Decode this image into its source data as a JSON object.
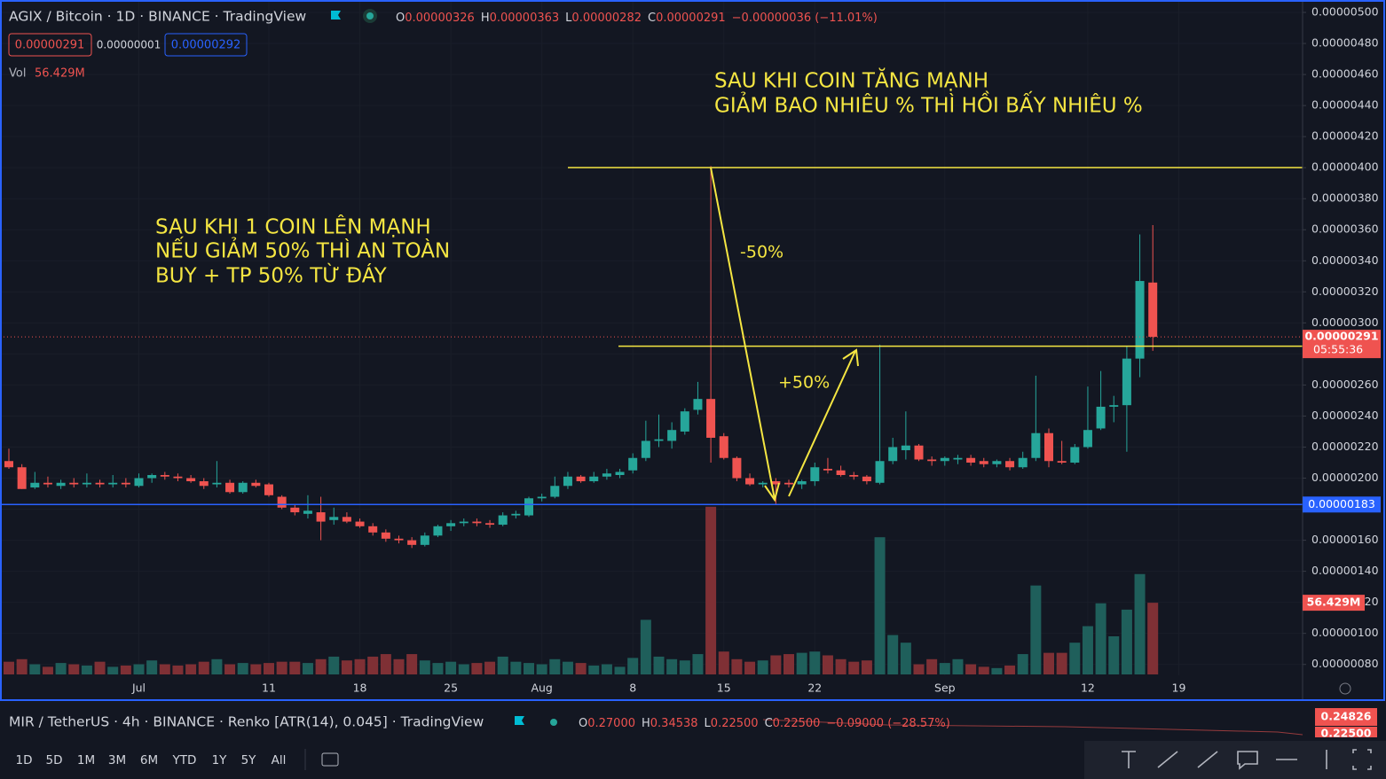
{
  "header": {
    "title": "AGIX / Bitcoin · 1D · BINANCE · TradingView",
    "ohlc": [
      {
        "key": "O",
        "value": "0.00000326"
      },
      {
        "key": "H",
        "value": "0.00000363"
      },
      {
        "key": "L",
        "value": "0.00000282"
      },
      {
        "key": "C",
        "value": "0.00000291"
      }
    ],
    "change": "−0.00000036 (−11.01%)",
    "sell": "0.00000291",
    "spread": "0.00000001",
    "buy": "0.00000292",
    "vol_label": "Vol"
  },
  "chart_data": {
    "type": "candlestick",
    "up_color": "#26a69a",
    "down_color": "#ef5350",
    "open": [
      2.11e-06,
      2.07e-06,
      1.94e-06,
      1.97e-06,
      1.95e-06,
      1.97e-06,
      1.96e-06,
      1.97e-06,
      1.96e-06,
      1.97e-06,
      1.95e-06,
      2e-06,
      2.02e-06,
      2.01e-06,
      2e-06,
      1.98e-06,
      1.96e-06,
      1.97e-06,
      1.91e-06,
      1.97e-06,
      1.96e-06,
      1.88e-06,
      1.81e-06,
      1.77e-06,
      1.78e-06,
      1.73e-06,
      1.75e-06,
      1.72e-06,
      1.69e-06,
      1.65e-06,
      1.61e-06,
      1.6e-06,
      1.57e-06,
      1.63e-06,
      1.69e-06,
      1.71e-06,
      1.72e-06,
      1.71e-06,
      1.7e-06,
      1.76e-06,
      1.76e-06,
      1.87e-06,
      1.88e-06,
      1.95e-06,
      2.01e-06,
      1.98e-06,
      2.01e-06,
      2.02e-06,
      2.05e-06,
      2.13e-06,
      2.24e-06,
      2.24e-06,
      2.3e-06,
      2.44e-06,
      2.51e-06,
      2.27e-06,
      2.13e-06,
      2e-06,
      1.96e-06,
      1.98e-06,
      1.97e-06,
      1.96e-06,
      1.98e-06,
      2.06e-06,
      2.05e-06,
      2.02e-06,
      2.01e-06,
      1.97e-06,
      2.11e-06,
      2.18e-06,
      2.21e-06,
      2.12e-06,
      2.11e-06,
      2.12e-06,
      2.13e-06,
      2.11e-06,
      2.09e-06,
      2.11e-06,
      2.07e-06,
      2.13e-06,
      2.29e-06,
      2.11e-06,
      2.1e-06,
      2.2e-06,
      2.32e-06,
      2.46e-06,
      2.47e-06,
      2.77e-06,
      3.26e-06
    ],
    "high": [
      2.19e-06,
      2.09e-06,
      2.04e-06,
      2.01e-06,
      1.99e-06,
      2e-06,
      2.03e-06,
      1.99e-06,
      2.02e-06,
      2e-06,
      2.03e-06,
      2.03e-06,
      2.04e-06,
      2.03e-06,
      2.02e-06,
      2e-06,
      2.11e-06,
      1.99e-06,
      1.98e-06,
      1.99e-06,
      1.97e-06,
      1.89e-06,
      1.83e-06,
      1.89e-06,
      1.88e-06,
      1.81e-06,
      1.78e-06,
      1.74e-06,
      1.71e-06,
      1.67e-06,
      1.63e-06,
      1.62e-06,
      1.65e-06,
      1.7e-06,
      1.73e-06,
      1.74e-06,
      1.74e-06,
      1.73e-06,
      1.78e-06,
      1.79e-06,
      1.88e-06,
      1.9e-06,
      2.01e-06,
      2.04e-06,
      2.02e-06,
      2.04e-06,
      2.06e-06,
      2.06e-06,
      2.16e-06,
      2.37e-06,
      2.41e-06,
      2.36e-06,
      2.45e-06,
      2.62e-06,
      4.01e-06,
      2.29e-06,
      2.14e-06,
      2.03e-06,
      1.98e-06,
      2e-06,
      1.99e-06,
      1.99e-06,
      2.1e-06,
      2.13e-06,
      2.08e-06,
      2.04e-06,
      2.02e-06,
      2.86e-06,
      2.26e-06,
      2.43e-06,
      2.22e-06,
      2.14e-06,
      2.14e-06,
      2.15e-06,
      2.15e-06,
      2.13e-06,
      2.12e-06,
      2.13e-06,
      2.17e-06,
      2.66e-06,
      2.32e-06,
      2.24e-06,
      2.22e-06,
      2.59e-06,
      2.69e-06,
      2.53e-06,
      2.85e-06,
      3.57e-06,
      3.63e-06
    ],
    "low": [
      2.06e-06,
      1.93e-06,
      1.93e-06,
      1.94e-06,
      1.93e-06,
      1.94e-06,
      1.94e-06,
      1.94e-06,
      1.94e-06,
      1.94e-06,
      1.94e-06,
      1.97e-06,
      1.99e-06,
      1.98e-06,
      1.97e-06,
      1.93e-06,
      1.94e-06,
      1.9e-06,
      1.9e-06,
      1.94e-06,
      1.88e-06,
      1.8e-06,
      1.76e-06,
      1.74e-06,
      1.6e-06,
      1.7e-06,
      1.71e-06,
      1.68e-06,
      1.63e-06,
      1.59e-06,
      1.58e-06,
      1.55e-06,
      1.56e-06,
      1.62e-06,
      1.66e-06,
      1.69e-06,
      1.69e-06,
      1.68e-06,
      1.69e-06,
      1.74e-06,
      1.75e-06,
      1.85e-06,
      1.87e-06,
      1.93e-06,
      1.97e-06,
      1.97e-06,
      1.99e-06,
      2e-06,
      2.03e-06,
      2.11e-06,
      2.2e-06,
      2.19e-06,
      2.28e-06,
      2.41e-06,
      2.1e-06,
      2.12e-06,
      1.98e-06,
      1.95e-06,
      1.94e-06,
      1.83e-06,
      1.94e-06,
      1.93e-06,
      1.95e-06,
      2.03e-06,
      2.01e-06,
      1.99e-06,
      1.96e-06,
      1.96e-06,
      2.09e-06,
      2.12e-06,
      2.11e-06,
      2.08e-06,
      2.08e-06,
      2.09e-06,
      2.08e-06,
      2.07e-06,
      2.07e-06,
      2.05e-06,
      2.06e-06,
      2.11e-06,
      2.07e-06,
      2.09e-06,
      2.09e-06,
      2.19e-06,
      2.31e-06,
      2.36e-06,
      2.17e-06,
      2.65e-06,
      2.82e-06
    ],
    "close": [
      2.07e-06,
      1.93e-06,
      1.97e-06,
      1.96e-06,
      1.97e-06,
      1.96e-06,
      1.97e-06,
      1.96e-06,
      1.97e-06,
      1.96e-06,
      2e-06,
      2.02e-06,
      2.01e-06,
      2e-06,
      1.98e-06,
      1.95e-06,
      1.97e-06,
      1.91e-06,
      1.97e-06,
      1.95e-06,
      1.89e-06,
      1.81e-06,
      1.78e-06,
      1.79e-06,
      1.72e-06,
      1.75e-06,
      1.72e-06,
      1.69e-06,
      1.65e-06,
      1.61e-06,
      1.6e-06,
      1.57e-06,
      1.63e-06,
      1.69e-06,
      1.71e-06,
      1.72e-06,
      1.71e-06,
      1.7e-06,
      1.76e-06,
      1.77e-06,
      1.87e-06,
      1.88e-06,
      1.95e-06,
      2.01e-06,
      1.98e-06,
      2.01e-06,
      2.03e-06,
      2.04e-06,
      2.13e-06,
      2.24e-06,
      2.25e-06,
      2.31e-06,
      2.43e-06,
      2.51e-06,
      2.26e-06,
      2.13e-06,
      2e-06,
      1.96e-06,
      1.97e-06,
      1.96e-06,
      1.96e-06,
      1.98e-06,
      2.07e-06,
      2.05e-06,
      2.02e-06,
      2.01e-06,
      1.98e-06,
      2.11e-06,
      2.2e-06,
      2.21e-06,
      2.12e-06,
      2.11e-06,
      2.13e-06,
      2.13e-06,
      2.1e-06,
      2.09e-06,
      2.11e-06,
      2.07e-06,
      2.13e-06,
      2.29e-06,
      2.11e-06,
      2.1e-06,
      2.2e-06,
      2.31e-06,
      2.46e-06,
      2.47e-06,
      2.77e-06,
      3.27e-06,
      2.91e-06
    ],
    "volume": {
      "values": [
        10,
        12,
        8,
        6,
        9,
        8,
        7,
        10,
        6,
        7,
        8,
        11,
        8,
        7,
        8,
        10,
        12,
        8,
        9,
        8,
        9,
        10,
        10,
        9,
        12,
        14,
        11,
        12,
        14,
        16,
        12,
        16,
        11,
        9,
        10,
        8,
        9,
        10,
        14,
        10,
        9,
        8,
        12,
        10,
        9,
        7,
        8,
        6,
        13,
        43,
        14,
        12,
        11,
        16,
        132,
        18,
        12,
        10,
        11,
        15,
        16,
        17,
        18,
        15,
        12,
        10,
        11,
        108,
        31,
        25,
        8,
        12,
        9,
        12,
        8,
        6,
        5,
        7,
        16,
        70,
        17,
        17,
        25,
        38,
        56,
        30,
        51,
        79,
        56.429
      ],
      "ylim": [
        0,
        150
      ],
      "last_label": "56.429M"
    },
    "ylim": [
      5.7e-07,
      5.08e-06
    ],
    "yticks": [
      {
        "value": 5e-06,
        "label": "0.00000500"
      },
      {
        "value": 4.8e-06,
        "label": "0.00000480"
      },
      {
        "value": 4.6e-06,
        "label": "0.00000460"
      },
      {
        "value": 4.4e-06,
        "label": "0.00000440"
      },
      {
        "value": 4.2e-06,
        "label": "0.00000420"
      },
      {
        "value": 4e-06,
        "label": "0.00000400"
      },
      {
        "value": 3.8e-06,
        "label": "0.00000380"
      },
      {
        "value": 3.6e-06,
        "label": "0.00000360"
      },
      {
        "value": 3.4e-06,
        "label": "0.00000340"
      },
      {
        "value": 3.2e-06,
        "label": "0.00000320"
      },
      {
        "value": 3e-06,
        "label": "0.00000300"
      },
      {
        "value": 2.8e-06,
        "label": "0.00000280"
      },
      {
        "value": 2.6e-06,
        "label": "0.00000260"
      },
      {
        "value": 2.4e-06,
        "label": "0.00000240"
      },
      {
        "value": 2.2e-06,
        "label": "0.00000220"
      },
      {
        "value": 2e-06,
        "label": "0.00000200"
      },
      {
        "value": 1.8e-06,
        "label": "0.00000180"
      },
      {
        "value": 1.6e-06,
        "label": "0.00000160"
      },
      {
        "value": 1.4e-06,
        "label": "0.00000140"
      },
      {
        "value": 1.2e-06,
        "label": "0.00000120"
      },
      {
        "value": 1e-06,
        "label": "0.00000100"
      },
      {
        "value": 8e-07,
        "label": "0.00000080"
      }
    ],
    "xticks": [
      {
        "value": 10,
        "label": "Jul"
      },
      {
        "value": 20,
        "label": "11"
      },
      {
        "value": 27,
        "label": "18"
      },
      {
        "value": 34,
        "label": "25"
      },
      {
        "value": 41,
        "label": "Aug"
      },
      {
        "value": 48,
        "label": "8"
      },
      {
        "value": 55,
        "label": "15"
      },
      {
        "value": 62,
        "label": "22"
      },
      {
        "value": 72,
        "label": "Sep"
      },
      {
        "value": 83,
        "label": "12"
      },
      {
        "value": 90,
        "label": "19"
      }
    ],
    "last_price": {
      "label": "0.00000291",
      "countdown": "05:55:36"
    },
    "hlines": [
      {
        "value": 4e-06,
        "color": "#f5e642"
      },
      {
        "value": 2.85e-06,
        "color": "#f5e642"
      },
      {
        "value": 1.83e-06,
        "color": "#2962ff",
        "label": "0.00000183"
      }
    ],
    "annotations": {
      "top": [
        "SAU KHI COIN TĂNG MẠNH",
        "GIẢM BAO NHIÊU % THÌ HỒI BẤY NHIÊU %"
      ],
      "left": [
        "SAU KHI 1 COIN LÊN MẠNH",
        "NẾU GIẢM 50% THÌ AN TOÀN",
        "BUY + TP 50% TỪ ĐÁY"
      ],
      "down": "-50%",
      "up": "+50%"
    }
  },
  "second_pane": {
    "title": "MIR / TetherUS · 4h · BINANCE · Renko [ATR(14), 0.045] · TradingView",
    "ohlc": [
      {
        "key": "O",
        "value": "0.27000"
      },
      {
        "key": "H",
        "value": "0.34538"
      },
      {
        "key": "L",
        "value": "0.22500"
      },
      {
        "key": "C",
        "value": "0.22500"
      }
    ],
    "change": "−0.09000 (−28.57%)",
    "tags": [
      "0.24826",
      "0.22500"
    ]
  },
  "toolbar": {
    "ranges": [
      "1D",
      "5D",
      "1M",
      "3M",
      "6M",
      "YTD",
      "1Y",
      "5Y",
      "All"
    ]
  }
}
